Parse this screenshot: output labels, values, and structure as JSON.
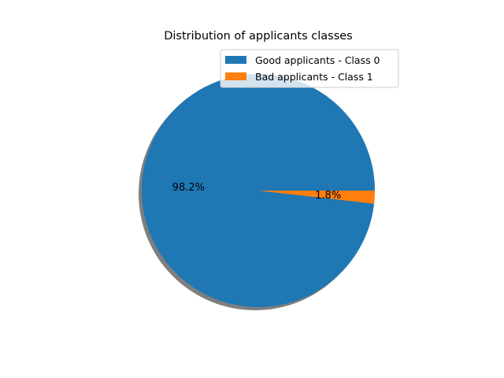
{
  "chart_data": {
    "type": "pie",
    "title": "Distribution of applicants classes",
    "categories": [
      "Good applicants - Class 0",
      "Bad applicants - Class 1"
    ],
    "values": [
      98.2,
      1.8
    ],
    "value_labels": [
      "98.2%",
      "1.8%"
    ],
    "colors": [
      "#1f77b4",
      "#ff7f0e"
    ],
    "shadow": true,
    "legend_position": "top-right"
  }
}
